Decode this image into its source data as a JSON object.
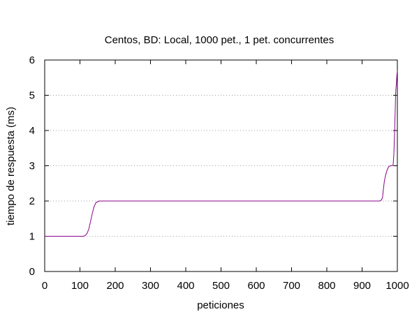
{
  "chart_data": {
    "type": "line",
    "title": "Centos, BD: Local,  1000 pet., 1 pet. concurrentes",
    "xlabel": "peticiones",
    "ylabel": "tiempo de respuesta (ms)",
    "xlim": [
      0,
      1000
    ],
    "ylim": [
      0,
      6
    ],
    "xticks": [
      "0",
      "100",
      "200",
      "300",
      "400",
      "500",
      "600",
      "700",
      "800",
      "900",
      "1000"
    ],
    "yticks": [
      "0",
      "1",
      "2",
      "3",
      "4",
      "5",
      "6"
    ],
    "grid": "horizontal dotted",
    "legend": "none",
    "series": [
      {
        "color": "#8b008b",
        "x": [
          0,
          110,
          115,
          120,
          125,
          130,
          135,
          140,
          145,
          150,
          155,
          160,
          950,
          955,
          958,
          960,
          963,
          966,
          970,
          975,
          980,
          985,
          988,
          990,
          992,
          994,
          995,
          996,
          997,
          998,
          999,
          1000
        ],
        "y": [
          1,
          1,
          1.02,
          1.08,
          1.2,
          1.42,
          1.65,
          1.84,
          1.95,
          1.98,
          2,
          2,
          2,
          2.03,
          2.1,
          2.3,
          2.55,
          2.7,
          2.85,
          2.97,
          3,
          3,
          3.03,
          3.3,
          3.9,
          4.6,
          5.0,
          5.2,
          5.3,
          5.45,
          5.6,
          5.7
        ]
      }
    ]
  }
}
